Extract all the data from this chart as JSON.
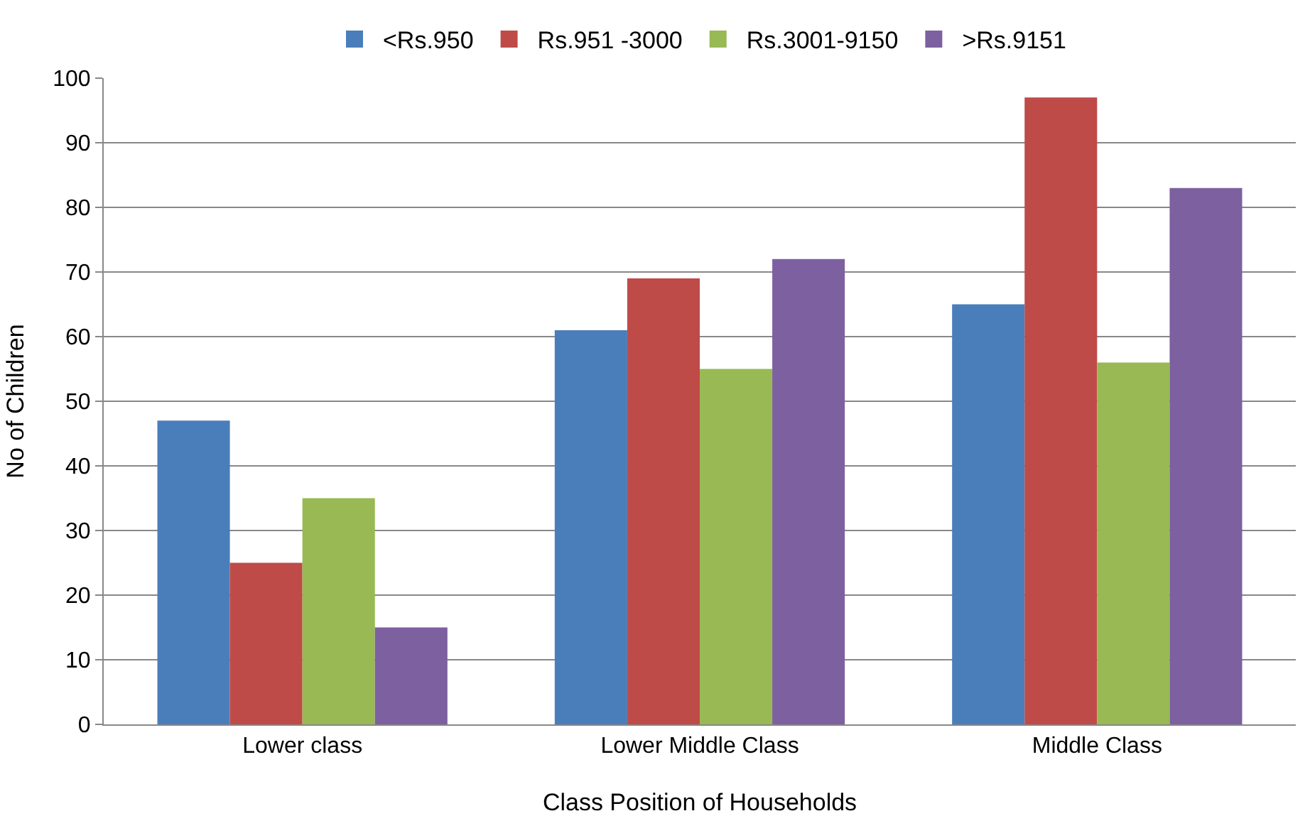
{
  "chart_data": {
    "type": "bar",
    "xlabel": "Class Position of Households",
    "ylabel": "No of Children",
    "categories": [
      "Lower class",
      "Lower Middle Class",
      "Middle Class"
    ],
    "series": [
      {
        "name": "<Rs.950",
        "color": "#4a7ebb",
        "values": [
          47,
          61,
          65
        ]
      },
      {
        "name": "Rs.951 -3000",
        "color": "#be4b48",
        "values": [
          25,
          69,
          97
        ]
      },
      {
        "name": "Rs.3001-9150",
        "color": "#98b954",
        "values": [
          35,
          55,
          56
        ]
      },
      {
        "name": ">Rs.9151",
        "color": "#7d60a0",
        "values": [
          15,
          72,
          83
        ]
      }
    ],
    "ylim": [
      0,
      100
    ],
    "yticks": [
      0,
      10,
      20,
      30,
      40,
      50,
      60,
      70,
      80,
      90,
      100
    ],
    "grid": "y",
    "legend": "top"
  }
}
